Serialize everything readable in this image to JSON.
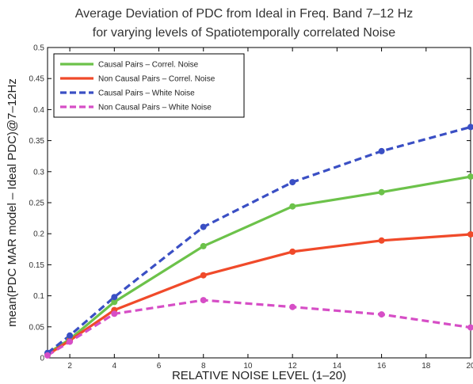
{
  "chart_data": {
    "type": "line",
    "title_lines": [
      "Average Deviation of PDC from Ideal in Freq. Band 7–12 Hz",
      "for varying levels of Spatiotemporally correlated Noise"
    ],
    "xlabel": "RELATIVE NOISE LEVEL (1–20)",
    "ylabel": "mean(PDC MAR model – Ideal PDC)@7–12Hz",
    "xlim": [
      1,
      20
    ],
    "ylim": [
      0,
      0.5
    ],
    "x_ticks": [
      2,
      4,
      6,
      8,
      10,
      12,
      14,
      16,
      18,
      20
    ],
    "y_ticks": [
      0,
      0.05,
      0.1,
      0.15,
      0.2,
      0.25,
      0.3,
      0.35,
      0.4,
      0.45,
      0.5
    ],
    "y_tick_labels": [
      "0",
      "0.05",
      "0.1",
      "0.15",
      "0.2",
      "0.25",
      "0.3",
      "0.35",
      "0.4",
      "0.45",
      "0.5"
    ],
    "x": [
      1,
      2,
      4,
      8,
      12,
      16,
      20
    ],
    "legend_position": "top-left",
    "grid": false,
    "series": [
      {
        "name": "Causal Pairs – Correl. Noise",
        "color": "#6cc24a",
        "dashed": false,
        "values": [
          0.007,
          0.03,
          0.09,
          0.18,
          0.244,
          0.267,
          0.292
        ]
      },
      {
        "name": "Non Causal Pairs – Correl. Noise",
        "color": "#f04a2a",
        "dashed": false,
        "values": [
          0.005,
          0.028,
          0.077,
          0.133,
          0.171,
          0.189,
          0.199
        ]
      },
      {
        "name": "Causal Pairs – White Noise",
        "color": "#3a4fc4",
        "dashed": true,
        "values": [
          0.008,
          0.036,
          0.098,
          0.211,
          0.283,
          0.333,
          0.372
        ]
      },
      {
        "name": "Non Causal Pairs – White Noise",
        "color": "#d64ec6",
        "dashed": true,
        "values": [
          0.004,
          0.026,
          0.071,
          0.093,
          0.082,
          0.07,
          0.049
        ]
      }
    ]
  }
}
